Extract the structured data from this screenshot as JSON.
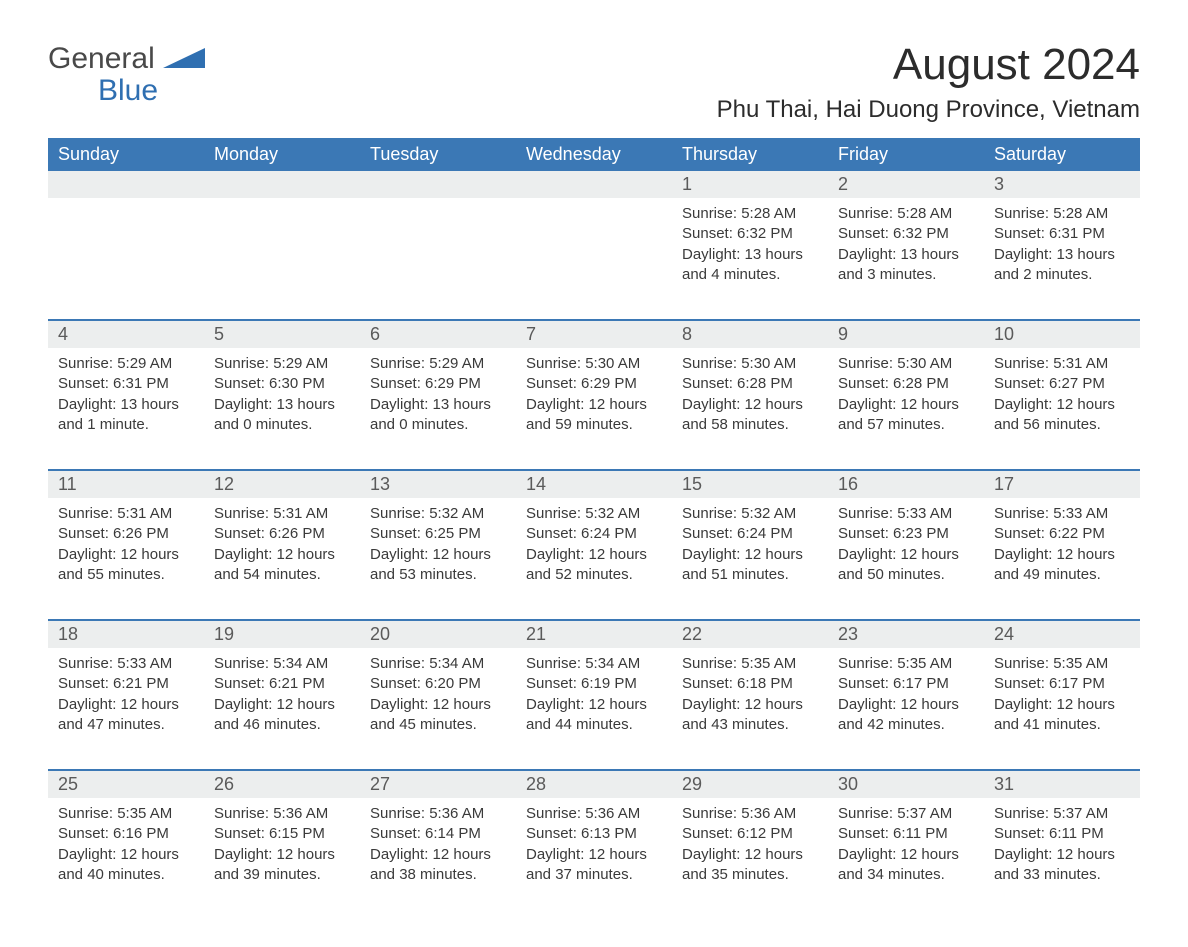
{
  "logo": {
    "text_general": "General",
    "text_blue": "Blue",
    "shape_color": "#2f6fb1"
  },
  "title": "August 2024",
  "location": "Phu Thai, Hai Duong Province, Vietnam",
  "colors": {
    "header_bg": "#3b78b5",
    "header_text": "#ffffff",
    "daynum_bg": "#eceeee",
    "border": "#3b78b5",
    "body_text": "#3a3a3a",
    "title_text": "#2c2c2c",
    "background": "#ffffff"
  },
  "fonts": {
    "title_size_pt": 33,
    "location_size_pt": 18,
    "header_size_pt": 14,
    "cell_size_pt": 11
  },
  "day_names": [
    "Sunday",
    "Monday",
    "Tuesday",
    "Wednesday",
    "Thursday",
    "Friday",
    "Saturday"
  ],
  "weeks": [
    {
      "nums": [
        "",
        "",
        "",
        "",
        "1",
        "2",
        "3"
      ],
      "cells": [
        {},
        {},
        {},
        {},
        {
          "sunrise": "Sunrise: 5:28 AM",
          "sunset": "Sunset: 6:32 PM",
          "daylight1": "Daylight: 13 hours",
          "daylight2": "and 4 minutes."
        },
        {
          "sunrise": "Sunrise: 5:28 AM",
          "sunset": "Sunset: 6:32 PM",
          "daylight1": "Daylight: 13 hours",
          "daylight2": "and 3 minutes."
        },
        {
          "sunrise": "Sunrise: 5:28 AM",
          "sunset": "Sunset: 6:31 PM",
          "daylight1": "Daylight: 13 hours",
          "daylight2": "and 2 minutes."
        }
      ]
    },
    {
      "nums": [
        "4",
        "5",
        "6",
        "7",
        "8",
        "9",
        "10"
      ],
      "cells": [
        {
          "sunrise": "Sunrise: 5:29 AM",
          "sunset": "Sunset: 6:31 PM",
          "daylight1": "Daylight: 13 hours",
          "daylight2": "and 1 minute."
        },
        {
          "sunrise": "Sunrise: 5:29 AM",
          "sunset": "Sunset: 6:30 PM",
          "daylight1": "Daylight: 13 hours",
          "daylight2": "and 0 minutes."
        },
        {
          "sunrise": "Sunrise: 5:29 AM",
          "sunset": "Sunset: 6:29 PM",
          "daylight1": "Daylight: 13 hours",
          "daylight2": "and 0 minutes."
        },
        {
          "sunrise": "Sunrise: 5:30 AM",
          "sunset": "Sunset: 6:29 PM",
          "daylight1": "Daylight: 12 hours",
          "daylight2": "and 59 minutes."
        },
        {
          "sunrise": "Sunrise: 5:30 AM",
          "sunset": "Sunset: 6:28 PM",
          "daylight1": "Daylight: 12 hours",
          "daylight2": "and 58 minutes."
        },
        {
          "sunrise": "Sunrise: 5:30 AM",
          "sunset": "Sunset: 6:28 PM",
          "daylight1": "Daylight: 12 hours",
          "daylight2": "and 57 minutes."
        },
        {
          "sunrise": "Sunrise: 5:31 AM",
          "sunset": "Sunset: 6:27 PM",
          "daylight1": "Daylight: 12 hours",
          "daylight2": "and 56 minutes."
        }
      ]
    },
    {
      "nums": [
        "11",
        "12",
        "13",
        "14",
        "15",
        "16",
        "17"
      ],
      "cells": [
        {
          "sunrise": "Sunrise: 5:31 AM",
          "sunset": "Sunset: 6:26 PM",
          "daylight1": "Daylight: 12 hours",
          "daylight2": "and 55 minutes."
        },
        {
          "sunrise": "Sunrise: 5:31 AM",
          "sunset": "Sunset: 6:26 PM",
          "daylight1": "Daylight: 12 hours",
          "daylight2": "and 54 minutes."
        },
        {
          "sunrise": "Sunrise: 5:32 AM",
          "sunset": "Sunset: 6:25 PM",
          "daylight1": "Daylight: 12 hours",
          "daylight2": "and 53 minutes."
        },
        {
          "sunrise": "Sunrise: 5:32 AM",
          "sunset": "Sunset: 6:24 PM",
          "daylight1": "Daylight: 12 hours",
          "daylight2": "and 52 minutes."
        },
        {
          "sunrise": "Sunrise: 5:32 AM",
          "sunset": "Sunset: 6:24 PM",
          "daylight1": "Daylight: 12 hours",
          "daylight2": "and 51 minutes."
        },
        {
          "sunrise": "Sunrise: 5:33 AM",
          "sunset": "Sunset: 6:23 PM",
          "daylight1": "Daylight: 12 hours",
          "daylight2": "and 50 minutes."
        },
        {
          "sunrise": "Sunrise: 5:33 AM",
          "sunset": "Sunset: 6:22 PM",
          "daylight1": "Daylight: 12 hours",
          "daylight2": "and 49 minutes."
        }
      ]
    },
    {
      "nums": [
        "18",
        "19",
        "20",
        "21",
        "22",
        "23",
        "24"
      ],
      "cells": [
        {
          "sunrise": "Sunrise: 5:33 AM",
          "sunset": "Sunset: 6:21 PM",
          "daylight1": "Daylight: 12 hours",
          "daylight2": "and 47 minutes."
        },
        {
          "sunrise": "Sunrise: 5:34 AM",
          "sunset": "Sunset: 6:21 PM",
          "daylight1": "Daylight: 12 hours",
          "daylight2": "and 46 minutes."
        },
        {
          "sunrise": "Sunrise: 5:34 AM",
          "sunset": "Sunset: 6:20 PM",
          "daylight1": "Daylight: 12 hours",
          "daylight2": "and 45 minutes."
        },
        {
          "sunrise": "Sunrise: 5:34 AM",
          "sunset": "Sunset: 6:19 PM",
          "daylight1": "Daylight: 12 hours",
          "daylight2": "and 44 minutes."
        },
        {
          "sunrise": "Sunrise: 5:35 AM",
          "sunset": "Sunset: 6:18 PM",
          "daylight1": "Daylight: 12 hours",
          "daylight2": "and 43 minutes."
        },
        {
          "sunrise": "Sunrise: 5:35 AM",
          "sunset": "Sunset: 6:17 PM",
          "daylight1": "Daylight: 12 hours",
          "daylight2": "and 42 minutes."
        },
        {
          "sunrise": "Sunrise: 5:35 AM",
          "sunset": "Sunset: 6:17 PM",
          "daylight1": "Daylight: 12 hours",
          "daylight2": "and 41 minutes."
        }
      ]
    },
    {
      "nums": [
        "25",
        "26",
        "27",
        "28",
        "29",
        "30",
        "31"
      ],
      "cells": [
        {
          "sunrise": "Sunrise: 5:35 AM",
          "sunset": "Sunset: 6:16 PM",
          "daylight1": "Daylight: 12 hours",
          "daylight2": "and 40 minutes."
        },
        {
          "sunrise": "Sunrise: 5:36 AM",
          "sunset": "Sunset: 6:15 PM",
          "daylight1": "Daylight: 12 hours",
          "daylight2": "and 39 minutes."
        },
        {
          "sunrise": "Sunrise: 5:36 AM",
          "sunset": "Sunset: 6:14 PM",
          "daylight1": "Daylight: 12 hours",
          "daylight2": "and 38 minutes."
        },
        {
          "sunrise": "Sunrise: 5:36 AM",
          "sunset": "Sunset: 6:13 PM",
          "daylight1": "Daylight: 12 hours",
          "daylight2": "and 37 minutes."
        },
        {
          "sunrise": "Sunrise: 5:36 AM",
          "sunset": "Sunset: 6:12 PM",
          "daylight1": "Daylight: 12 hours",
          "daylight2": "and 35 minutes."
        },
        {
          "sunrise": "Sunrise: 5:37 AM",
          "sunset": "Sunset: 6:11 PM",
          "daylight1": "Daylight: 12 hours",
          "daylight2": "and 34 minutes."
        },
        {
          "sunrise": "Sunrise: 5:37 AM",
          "sunset": "Sunset: 6:11 PM",
          "daylight1": "Daylight: 12 hours",
          "daylight2": "and 33 minutes."
        }
      ]
    }
  ]
}
